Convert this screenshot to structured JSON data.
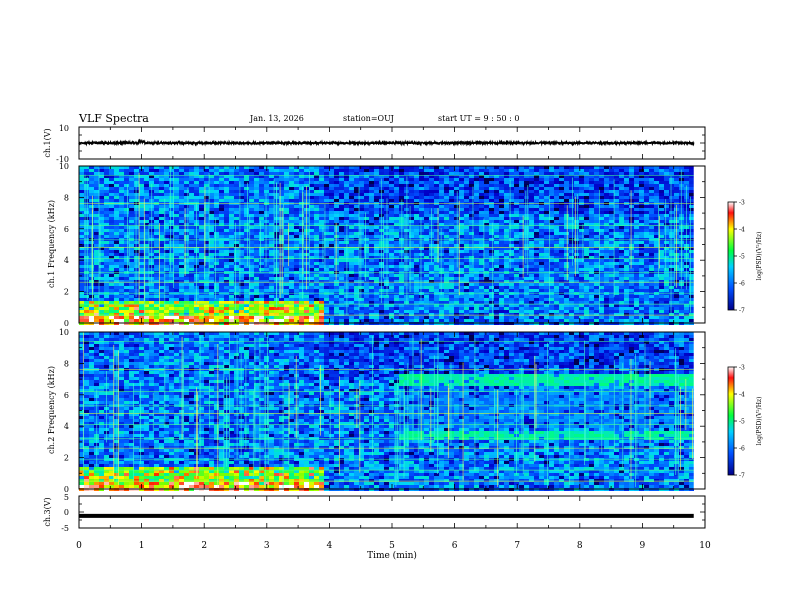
{
  "header": {
    "title": "VLF Spectra",
    "date": "Jan. 13, 2026",
    "station": "station=OUJ",
    "start_ut": "start  UT =  9 : 50 : 0"
  },
  "chart_data": [
    {
      "type": "line",
      "panel": "ch1-waveform",
      "ylabel": "ch.1(V)",
      "ylim": [
        -10,
        10
      ],
      "yticks": [
        10,
        -10
      ],
      "xlim": [
        0,
        10
      ],
      "series_level": 0,
      "series_noise": 0.6,
      "series_end_x": 9.82
    },
    {
      "type": "heatmap",
      "panel": "ch1-spectrogram",
      "ylabel": "ch.1 Frequency (kHz)",
      "ylim": [
        0,
        10
      ],
      "yticks": [
        0,
        2,
        4,
        6,
        8,
        10
      ],
      "xlim": [
        0,
        10
      ],
      "data_end_x": 9.82,
      "colorbar": {
        "label": "log(PSD)(V²/Hz)",
        "range": [
          -7,
          -3
        ],
        "ticks": [
          "-3",
          "-4",
          "-5",
          "-6",
          "-7"
        ]
      }
    },
    {
      "type": "heatmap",
      "panel": "ch2-spectrogram",
      "ylabel": "ch.2 Frequency (kHz)",
      "ylim": [
        0,
        10
      ],
      "yticks": [
        0,
        2,
        4,
        6,
        8,
        10
      ],
      "xlim": [
        0,
        10
      ],
      "data_end_x": 9.82,
      "band_kHz": [
        3.5,
        7.0
      ],
      "band_start_x": 5.1,
      "colorbar": {
        "label": "log(PSD)(V²/Hz)",
        "range": [
          -7,
          -3
        ],
        "ticks": [
          "-3",
          "-4",
          "-5",
          "-6",
          "-7"
        ]
      }
    },
    {
      "type": "line",
      "panel": "ch3-waveform",
      "ylabel": "ch.3(V)",
      "ylim": [
        -5,
        5
      ],
      "yticks": [
        5,
        0,
        -5
      ],
      "xlim": [
        0,
        10
      ],
      "xlabel": "Time  (min)",
      "xticks": [
        0,
        1,
        2,
        3,
        4,
        5,
        6,
        7,
        8,
        9,
        10
      ],
      "series_level": -1.2,
      "series_end_x": 9.82
    }
  ]
}
